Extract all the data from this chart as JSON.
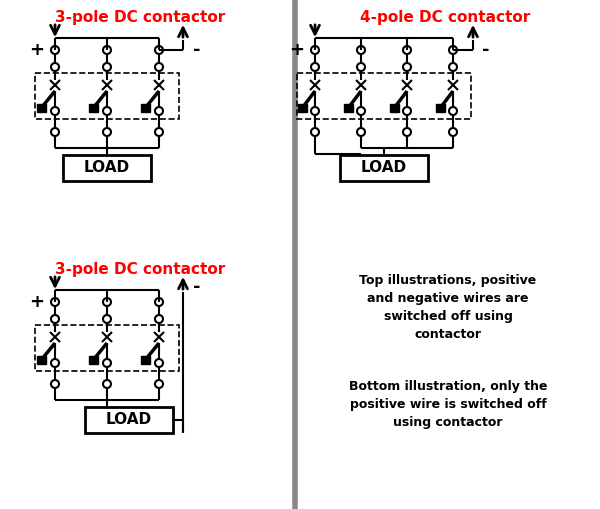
{
  "bg_color": "#ffffff",
  "fig_width": 6.0,
  "fig_height": 5.09,
  "sections": {
    "top_left_title": "3-pole DC contactor",
    "top_right_title": "4-pole DC contactor",
    "bottom_left_title": "3-pole DC contactor"
  },
  "right_text_1": [
    "Top illustrations, positive",
    "and negative wires are",
    "switched off using",
    "contactor"
  ],
  "right_text_2": [
    "Bottom illustration, only the",
    "positive wire is switched off",
    "using contactor"
  ],
  "divider_color": "#888888",
  "title_color": "#ff0000",
  "line_color": "#000000"
}
